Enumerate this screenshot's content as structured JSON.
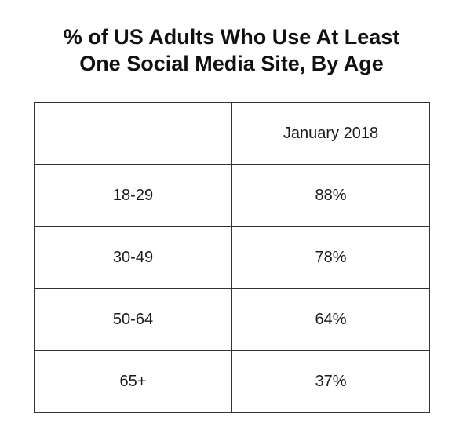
{
  "chart_data": {
    "type": "table",
    "title_lines": [
      "% of US Adults Who Use At Least",
      "One Social Media Site, By Age"
    ],
    "columns": [
      "",
      "January 2018"
    ],
    "rows": [
      {
        "label": "18-29",
        "value": "88%"
      },
      {
        "label": "30-49",
        "value": "78%"
      },
      {
        "label": "50-64",
        "value": "64%"
      },
      {
        "label": "65+",
        "value": "37%"
      }
    ],
    "categories": [
      "18-29",
      "30-49",
      "50-64",
      "65+"
    ],
    "series": [
      {
        "name": "January 2018",
        "values": [
          88,
          78,
          64,
          37
        ]
      }
    ]
  }
}
